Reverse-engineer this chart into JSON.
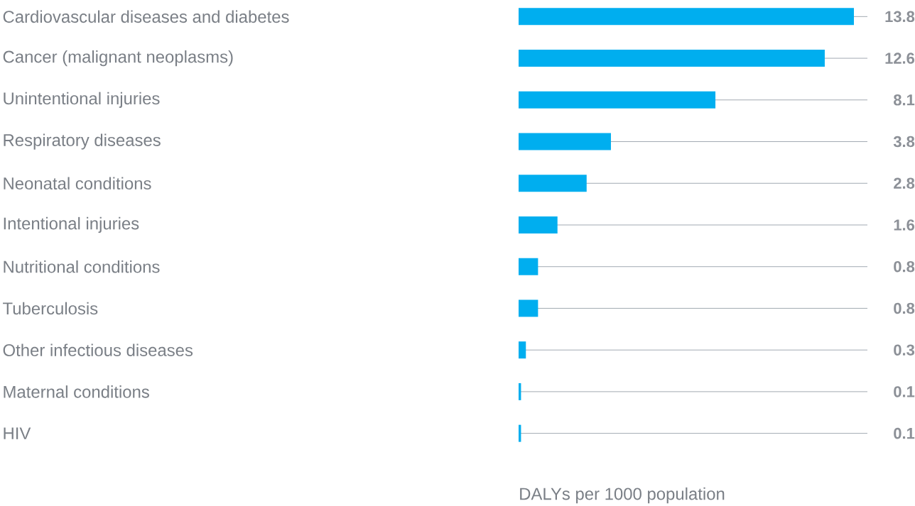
{
  "chart_data": {
    "type": "bar",
    "orientation": "horizontal",
    "xlabel": "DALYs per 1000 population",
    "categories": [
      "Cardiovascular diseases and diabetes",
      "Cancer (malignant neoplasms)",
      "Unintentional injuries",
      "Respiratory diseases",
      "Neonatal conditions",
      "Intentional injuries",
      "Nutritional conditions",
      "Tuberculosis",
      "Other infectious diseases",
      "Maternal conditions",
      "HIV"
    ],
    "values": [
      13.8,
      12.6,
      8.1,
      3.8,
      2.8,
      1.6,
      0.8,
      0.8,
      0.3,
      0.1,
      0.1
    ],
    "color": "#00aeef",
    "data_labels": true,
    "grid": "y"
  }
}
